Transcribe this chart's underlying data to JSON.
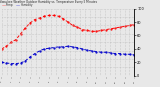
{
  "title": "Milwaukee Weather Outdoor Humidity vs. Temperature Every 5 Minutes",
  "bg_color": "#e8e8e8",
  "plot_bg_color": "#e8e8e8",
  "grid_color": "#aaaaaa",
  "temp_color": "#ff0000",
  "humidity_color": "#0000cc",
  "temp_values": [
    42,
    45,
    50,
    53,
    60,
    67,
    73,
    77,
    79,
    81,
    82,
    82,
    81,
    78,
    74,
    70,
    68,
    65,
    64,
    63,
    63,
    64,
    65,
    66,
    67,
    68,
    69,
    70,
    71
  ],
  "humidity_values": [
    20,
    19,
    18,
    18,
    19,
    22,
    28,
    33,
    37,
    40,
    41,
    42,
    43,
    43,
    44,
    43,
    42,
    40,
    38,
    37,
    36,
    35,
    35,
    34,
    33,
    33,
    32,
    32,
    31
  ],
  "temp_ylim": [
    10,
    90
  ],
  "humidity_ylim": [
    0,
    100
  ],
  "right_yticks": [
    0,
    20,
    40,
    60,
    80,
    100
  ],
  "right_yticklabels": [
    "0",
    "20",
    "40",
    "60",
    "80",
    "100"
  ],
  "n_xgrid": 28,
  "n_xticks": 28
}
